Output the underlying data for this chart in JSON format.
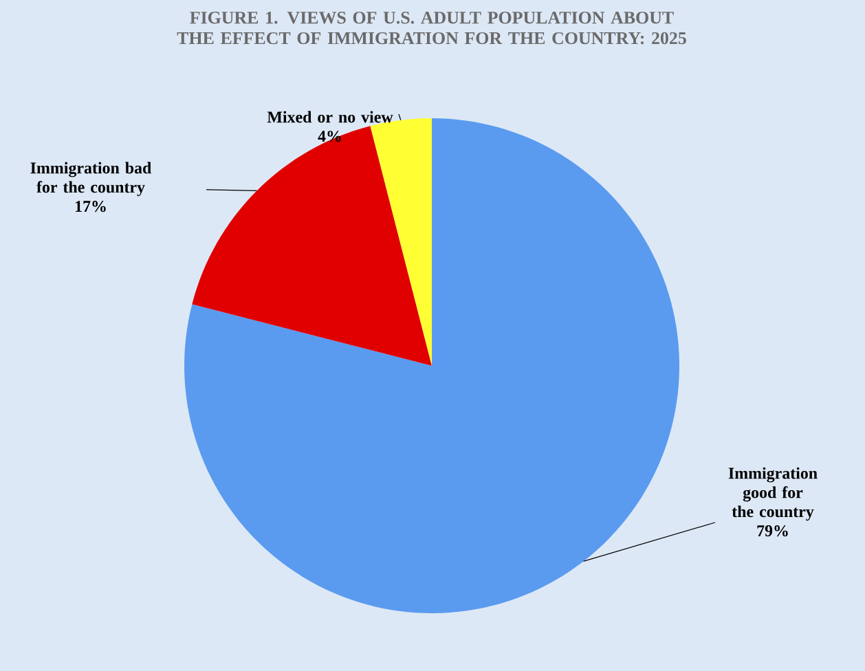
{
  "chart_data": {
    "type": "pie",
    "title": "FIGURE 1. VIEWS OF U.S. ADULT POPULATION ABOUT THE EFFECT OF IMMIGRATION FOR THE COUNTRY: 2025",
    "categories": [
      "Immigration good for the country",
      "Immigration bad for the country",
      "Mixed or no view"
    ],
    "values": [
      79,
      17,
      4
    ],
    "colors": [
      "#5a9bef",
      "#e00000",
      "#ffff33"
    ],
    "value_labels": [
      "79%",
      "17%",
      "4%"
    ]
  }
}
